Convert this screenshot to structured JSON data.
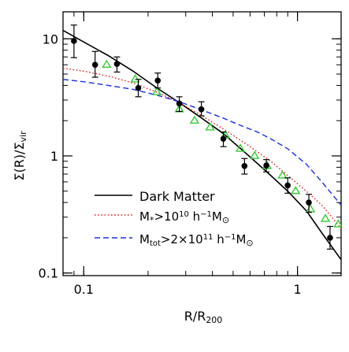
{
  "chart_data": {
    "type": "scatter",
    "x_scale": "log",
    "y_scale": "log",
    "xlim": [
      0.08,
      1.6
    ],
    "ylim": [
      0.095,
      17
    ],
    "grid": false,
    "legend_position": "bottom-left",
    "xlabel": {
      "main": "R/R",
      "sub": "200"
    },
    "ylabel": {
      "p1": "Σ(R)/Σ",
      "sub": "vir"
    },
    "x_ticks": [
      {
        "value": 0.1,
        "label": "0.1"
      },
      {
        "value": 1,
        "label": "1"
      }
    ],
    "y_ticks": [
      {
        "value": 0.1,
        "label": "0.1"
      },
      {
        "value": 1,
        "label": "1"
      },
      {
        "value": 10,
        "label": "10"
      }
    ],
    "series": [
      {
        "name": "Dark Matter",
        "kind": "line",
        "style": "solid",
        "color": "#000000",
        "points": [
          [
            0.08,
            11.8
          ],
          [
            0.1,
            9.4
          ],
          [
            0.13,
            7.2
          ],
          [
            0.17,
            5.3
          ],
          [
            0.22,
            3.8
          ],
          [
            0.28,
            2.85
          ],
          [
            0.35,
            2.15
          ],
          [
            0.45,
            1.55
          ],
          [
            0.6,
            0.98
          ],
          [
            0.75,
            0.68
          ],
          [
            0.9,
            0.5
          ],
          [
            1.1,
            0.34
          ],
          [
            1.3,
            0.22
          ],
          [
            1.6,
            0.13
          ]
        ]
      },
      {
        "name": "M*>10^10 h^-1 Msun",
        "kind": "line",
        "style": "dotted",
        "color": "#e02020",
        "points": [
          [
            0.08,
            5.6
          ],
          [
            0.1,
            5.3
          ],
          [
            0.13,
            4.8
          ],
          [
            0.17,
            4.2
          ],
          [
            0.22,
            3.5
          ],
          [
            0.28,
            2.85
          ],
          [
            0.35,
            2.25
          ],
          [
            0.45,
            1.7
          ],
          [
            0.6,
            1.2
          ],
          [
            0.75,
            0.9
          ],
          [
            0.9,
            0.68
          ],
          [
            1.1,
            0.5
          ],
          [
            1.3,
            0.38
          ],
          [
            1.6,
            0.24
          ]
        ]
      },
      {
        "name": "Mtot>2x10^11 h^-1 Msun",
        "kind": "line",
        "style": "dashed",
        "color": "#1a2ee8",
        "points": [
          [
            0.08,
            4.5
          ],
          [
            0.1,
            4.3
          ],
          [
            0.13,
            4.0
          ],
          [
            0.17,
            3.7
          ],
          [
            0.22,
            3.3
          ],
          [
            0.28,
            2.9
          ],
          [
            0.35,
            2.5
          ],
          [
            0.45,
            2.1
          ],
          [
            0.55,
            1.8
          ],
          [
            0.65,
            1.6
          ],
          [
            0.75,
            1.4
          ],
          [
            0.9,
            1.15
          ],
          [
            1.1,
            0.85
          ],
          [
            1.3,
            0.6
          ],
          [
            1.6,
            0.38
          ]
        ]
      },
      {
        "name": "data points",
        "kind": "points_errorbar",
        "color": "#000000",
        "points": [
          {
            "x": 0.09,
            "y": 9.6,
            "lo": 6.9,
            "hi": 13.1
          },
          {
            "x": 0.113,
            "y": 6.0,
            "lo": 4.7,
            "hi": 7.8
          },
          {
            "x": 0.143,
            "y": 6.1,
            "lo": 5.2,
            "hi": 7.0
          },
          {
            "x": 0.18,
            "y": 3.8,
            "lo": 3.2,
            "hi": 4.5
          },
          {
            "x": 0.222,
            "y": 4.4,
            "lo": 3.8,
            "hi": 5.1
          },
          {
            "x": 0.28,
            "y": 2.8,
            "lo": 2.4,
            "hi": 3.2
          },
          {
            "x": 0.355,
            "y": 2.5,
            "lo": 2.2,
            "hi": 2.9
          },
          {
            "x": 0.45,
            "y": 1.4,
            "lo": 1.2,
            "hi": 1.6
          },
          {
            "x": 0.565,
            "y": 0.82,
            "lo": 0.7,
            "hi": 0.95
          },
          {
            "x": 0.715,
            "y": 0.83,
            "lo": 0.73,
            "hi": 0.93
          },
          {
            "x": 0.9,
            "y": 0.56,
            "lo": 0.48,
            "hi": 0.65
          },
          {
            "x": 1.13,
            "y": 0.4,
            "lo": 0.33,
            "hi": 0.47
          },
          {
            "x": 1.42,
            "y": 0.2,
            "lo": 0.16,
            "hi": 0.25
          }
        ]
      },
      {
        "name": "triangles",
        "kind": "triangles",
        "color": "#33cc33",
        "points": [
          [
            0.128,
            6.0
          ],
          [
            0.174,
            4.5
          ],
          [
            0.22,
            3.5
          ],
          [
            0.28,
            2.5
          ],
          [
            0.33,
            2.0
          ],
          [
            0.39,
            1.75
          ],
          [
            0.46,
            1.5
          ],
          [
            0.54,
            1.15
          ],
          [
            0.63,
            1.0
          ],
          [
            0.72,
            0.82
          ],
          [
            0.85,
            0.68
          ],
          [
            0.98,
            0.5
          ],
          [
            1.15,
            0.35
          ],
          [
            1.35,
            0.29
          ],
          [
            1.55,
            0.26
          ]
        ]
      }
    ],
    "legend": [
      {
        "series_index": 0,
        "label": "Dark Matter"
      },
      {
        "series_index": 1,
        "label_parts": [
          "M",
          "*",
          ">10",
          "10",
          " h",
          "−1",
          "M",
          "⊙"
        ]
      },
      {
        "series_index": 2,
        "label_parts": [
          "M",
          "tot",
          ">2×10",
          "11",
          " h",
          "−1",
          "M",
          "⊙"
        ]
      }
    ]
  }
}
